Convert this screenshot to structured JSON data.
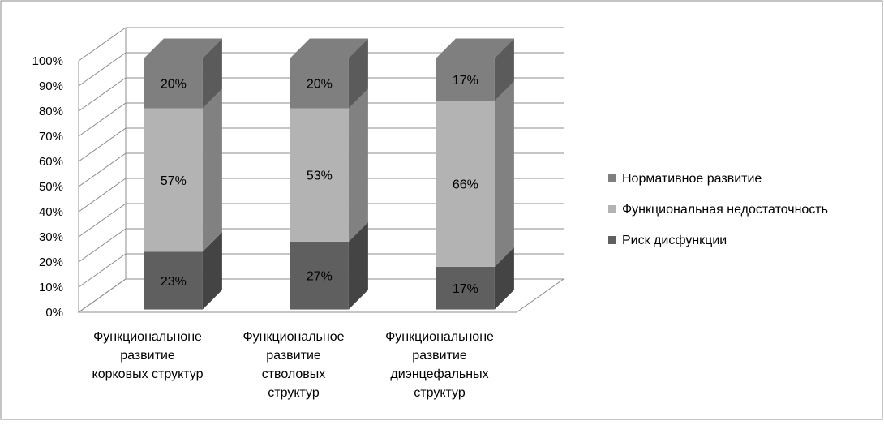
{
  "chart_data": {
    "type": "bar",
    "stacked": true,
    "three_d": true,
    "categories": [
      [
        "Функциональноне",
        "развитие",
        "корковых структур"
      ],
      [
        "Функциональное",
        "развитие",
        "стволовых",
        "структур"
      ],
      [
        "Функциональноне",
        "развитие",
        "диэнцефальных",
        "структур"
      ]
    ],
    "series": [
      {
        "name": "Риск дисфункции",
        "values": [
          23,
          27,
          17
        ],
        "labels": [
          "23%",
          "27%",
          "17%"
        ],
        "color": "#5f5f5f"
      },
      {
        "name": "Функциональная недостаточность",
        "values": [
          57,
          53,
          66
        ],
        "labels": [
          "57%",
          "53%",
          "66%"
        ],
        "color": "#b3b3b3"
      },
      {
        "name": "Нормативное развитие",
        "values": [
          20,
          20,
          17
        ],
        "labels": [
          "20%",
          "20%",
          "17%"
        ],
        "color": "#7f7f7f"
      }
    ],
    "legend_order": [
      "Нормативное развитие",
      "Функциональная недостаточность",
      "Риск дисфункции"
    ],
    "legend_position": "right",
    "ylim": [
      0,
      100
    ],
    "yticks": [
      "0%",
      "10%",
      "20%",
      "30%",
      "40%",
      "50%",
      "60%",
      "70%",
      "80%",
      "90%",
      "100%"
    ],
    "grid": true
  }
}
